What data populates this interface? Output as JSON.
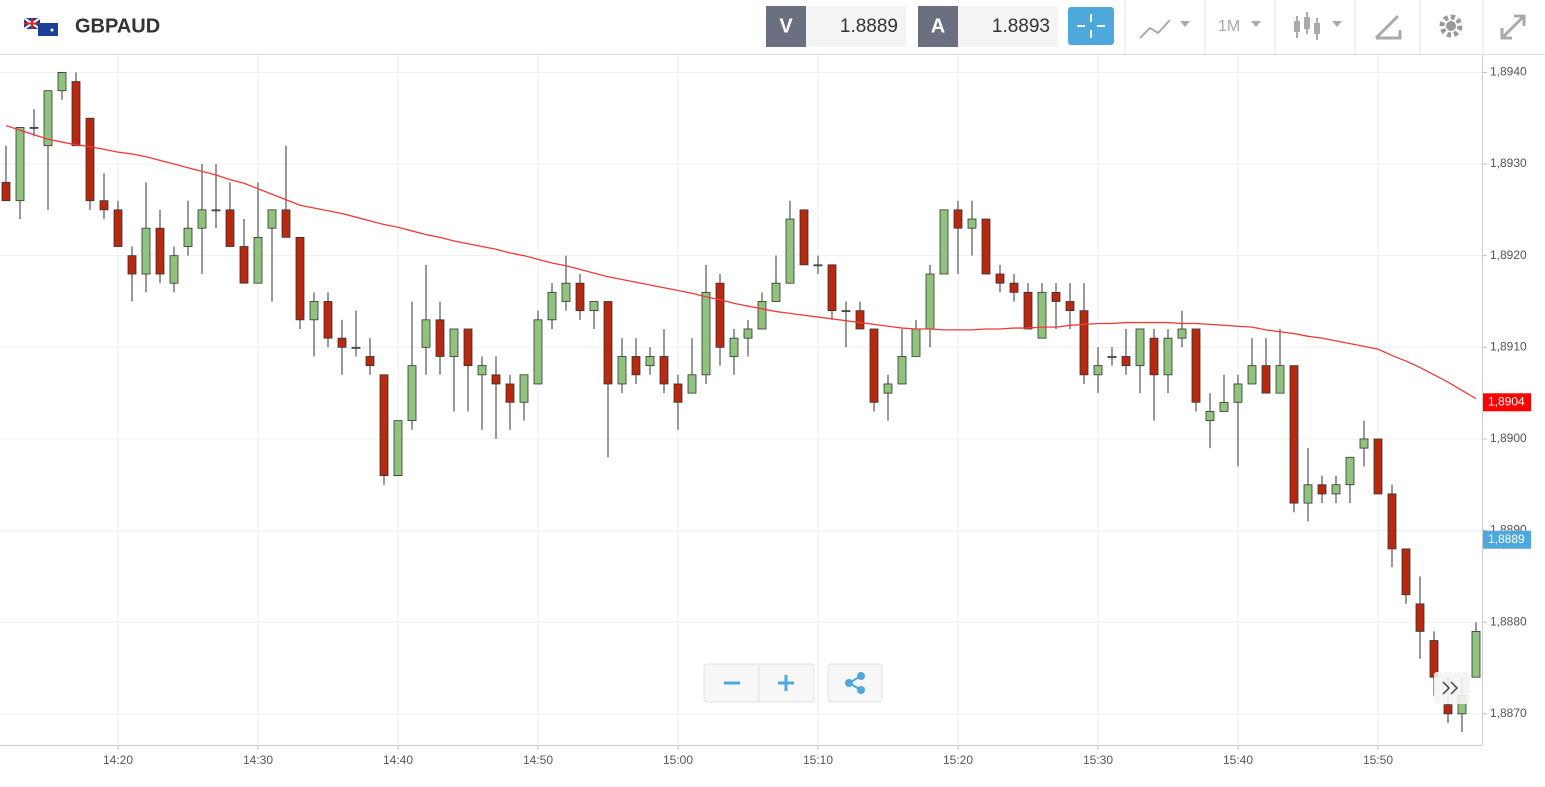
{
  "header": {
    "symbol": "GBPAUD",
    "bid_label": "V",
    "bid": "1.8889",
    "ask_label": "A",
    "ask": "1.8893",
    "timeframe": "1M"
  },
  "chart_data": {
    "type": "candlestick",
    "x": [
      "14:12",
      "14:13",
      "14:14",
      "14:15",
      "14:16",
      "14:17",
      "14:18",
      "14:19",
      "14:20",
      "14:21",
      "14:22",
      "14:23",
      "14:24",
      "14:25",
      "14:26",
      "14:27",
      "14:28",
      "14:29",
      "14:30",
      "14:31",
      "14:32",
      "14:33",
      "14:34",
      "14:35",
      "14:36",
      "14:37",
      "14:38",
      "14:39",
      "14:40",
      "14:41",
      "14:42",
      "14:43",
      "14:44",
      "14:45",
      "14:46",
      "14:47",
      "14:48",
      "14:49",
      "14:50",
      "14:51",
      "14:52",
      "14:53",
      "14:54",
      "14:55",
      "14:56",
      "14:57",
      "14:58",
      "14:59",
      "15:00",
      "15:01",
      "15:02",
      "15:03",
      "15:04",
      "15:05",
      "15:06",
      "15:07",
      "15:08",
      "15:09",
      "15:10",
      "15:11",
      "15:12",
      "15:13",
      "15:14",
      "15:15",
      "15:16",
      "15:17",
      "15:18",
      "15:19",
      "15:20",
      "15:21",
      "15:22",
      "15:23",
      "15:24",
      "15:25",
      "15:26",
      "15:27",
      "15:28",
      "15:29",
      "15:30",
      "15:31",
      "15:32",
      "15:33",
      "15:34",
      "15:35",
      "15:36",
      "15:37",
      "15:38",
      "15:39",
      "15:40",
      "15:41",
      "15:42",
      "15:43",
      "15:44",
      "15:45",
      "15:46",
      "15:47",
      "15:48",
      "15:49",
      "15:50",
      "15:51",
      "15:52",
      "15:53",
      "15:54",
      "15:55",
      "15:56",
      "15:57"
    ],
    "open": [
      1.8928,
      1.8926,
      1.8934,
      1.8932,
      1.8938,
      1.8939,
      1.8935,
      1.8926,
      1.8925,
      1.892,
      1.8918,
      1.8923,
      1.8917,
      1.8921,
      1.8923,
      1.8925,
      1.8925,
      1.8921,
      1.8917,
      1.8923,
      1.8925,
      1.8922,
      1.8913,
      1.8915,
      1.8911,
      1.891,
      1.8909,
      1.8907,
      1.8896,
      1.8902,
      1.891,
      1.8913,
      1.8909,
      1.8912,
      1.8907,
      1.8907,
      1.8906,
      1.8904,
      1.8906,
      1.8913,
      1.8915,
      1.8917,
      1.8914,
      1.8915,
      1.8906,
      1.8909,
      1.8908,
      1.8909,
      1.8906,
      1.8905,
      1.8907,
      1.8917,
      1.8909,
      1.8911,
      1.8912,
      1.8915,
      1.8917,
      1.8925,
      1.8919,
      1.8919,
      1.8914,
      1.8914,
      1.8912,
      1.8905,
      1.8906,
      1.8909,
      1.8912,
      1.8918,
      1.8925,
      1.8923,
      1.8924,
      1.8918,
      1.8917,
      1.8916,
      1.8911,
      1.8916,
      1.8915,
      1.8914,
      1.8907,
      1.8909,
      1.8909,
      1.8908,
      1.8911,
      1.8907,
      1.8911,
      1.8912,
      1.8902,
      1.8903,
      1.8904,
      1.8906,
      1.8908,
      1.8905,
      1.8908,
      1.8893,
      1.8895,
      1.8894,
      1.8895,
      1.8899,
      1.89,
      1.8894,
      1.8888,
      1.8882,
      1.8878,
      1.8871,
      1.887,
      1.8874
    ],
    "high": [
      1.8932,
      1.8934,
      1.8936,
      1.8938,
      1.894,
      1.894,
      1.8935,
      1.8929,
      1.8926,
      1.8921,
      1.8928,
      1.8925,
      1.8921,
      1.8926,
      1.893,
      1.893,
      1.8928,
      1.8924,
      1.8928,
      1.8925,
      1.8932,
      1.8922,
      1.8916,
      1.8916,
      1.8913,
      1.8914,
      1.8911,
      1.8907,
      1.8902,
      1.8915,
      1.8919,
      1.8915,
      1.8912,
      1.8912,
      1.8909,
      1.8909,
      1.8907,
      1.8907,
      1.8914,
      1.8917,
      1.892,
      1.8918,
      1.8915,
      1.8915,
      1.8911,
      1.8911,
      1.891,
      1.8912,
      1.8907,
      1.8911,
      1.8919,
      1.8918,
      1.8912,
      1.8913,
      1.8916,
      1.892,
      1.8926,
      1.8925,
      1.892,
      1.8919,
      1.8915,
      1.8915,
      1.8912,
      1.8907,
      1.8912,
      1.8913,
      1.8919,
      1.8925,
      1.8926,
      1.8926,
      1.8924,
      1.8919,
      1.8918,
      1.8917,
      1.8917,
      1.8917,
      1.8917,
      1.8917,
      1.891,
      1.891,
      1.8912,
      1.8912,
      1.8912,
      1.8912,
      1.8914,
      1.8912,
      1.8905,
      1.8907,
      1.8907,
      1.8911,
      1.8911,
      1.8912,
      1.8908,
      1.8899,
      1.8896,
      1.8896,
      1.8898,
      1.8902,
      1.89,
      1.8895,
      1.8888,
      1.8885,
      1.8879,
      1.8874,
      1.8874,
      1.888
    ],
    "low": [
      1.8926,
      1.8924,
      1.8933,
      1.8925,
      1.8937,
      1.8932,
      1.8925,
      1.8924,
      1.8921,
      1.8915,
      1.8916,
      1.8917,
      1.8916,
      1.892,
      1.8918,
      1.8923,
      1.8921,
      1.8917,
      1.8917,
      1.8915,
      1.8922,
      1.8912,
      1.8909,
      1.891,
      1.8907,
      1.8909,
      1.8907,
      1.8895,
      1.8896,
      1.8901,
      1.8907,
      1.8907,
      1.8903,
      1.8903,
      1.8901,
      1.89,
      1.8901,
      1.8902,
      1.8906,
      1.8912,
      1.8914,
      1.8913,
      1.8912,
      1.8898,
      1.8905,
      1.8906,
      1.8907,
      1.8905,
      1.8901,
      1.8905,
      1.8906,
      1.8908,
      1.8907,
      1.8909,
      1.8912,
      1.8915,
      1.8917,
      1.8919,
      1.8918,
      1.8913,
      1.891,
      1.8912,
      1.8903,
      1.8902,
      1.8906,
      1.8909,
      1.891,
      1.8918,
      1.8918,
      1.892,
      1.8918,
      1.8916,
      1.8915,
      1.8912,
      1.8911,
      1.8912,
      1.8912,
      1.8906,
      1.8905,
      1.8908,
      1.8907,
      1.8905,
      1.8902,
      1.8905,
      1.891,
      1.8903,
      1.8899,
      1.8903,
      1.8897,
      1.8906,
      1.8905,
      1.8905,
      1.8892,
      1.8891,
      1.8893,
      1.8893,
      1.8893,
      1.8897,
      1.8894,
      1.8886,
      1.8882,
      1.8876,
      1.8872,
      1.8869,
      1.8868,
      1.8874
    ],
    "close": [
      1.8926,
      1.8934,
      1.8934,
      1.8938,
      1.894,
      1.8932,
      1.8926,
      1.8925,
      1.8921,
      1.8918,
      1.8923,
      1.8918,
      1.892,
      1.8923,
      1.8925,
      1.8925,
      1.8921,
      1.8917,
      1.8922,
      1.8925,
      1.8922,
      1.8913,
      1.8915,
      1.8911,
      1.891,
      1.891,
      1.8908,
      1.8896,
      1.8902,
      1.8908,
      1.8913,
      1.8909,
      1.8912,
      1.8908,
      1.8908,
      1.8906,
      1.8904,
      1.8907,
      1.8913,
      1.8916,
      1.8917,
      1.8914,
      1.8915,
      1.8906,
      1.8909,
      1.8907,
      1.8909,
      1.8906,
      1.8904,
      1.8907,
      1.8916,
      1.891,
      1.8911,
      1.8912,
      1.8915,
      1.8917,
      1.8924,
      1.8919,
      1.8919,
      1.8914,
      1.8914,
      1.8912,
      1.8904,
      1.8906,
      1.8909,
      1.8912,
      1.8918,
      1.8925,
      1.8923,
      1.8924,
      1.8918,
      1.8917,
      1.8916,
      1.8912,
      1.8916,
      1.8915,
      1.8914,
      1.8907,
      1.8908,
      1.8909,
      1.8908,
      1.8912,
      1.8907,
      1.8911,
      1.8912,
      1.8904,
      1.8903,
      1.8904,
      1.8906,
      1.8908,
      1.8905,
      1.8908,
      1.8893,
      1.8895,
      1.8894,
      1.8895,
      1.8898,
      1.89,
      1.8894,
      1.8888,
      1.8883,
      1.8879,
      1.8874,
      1.887,
      1.8872,
      1.8879
    ],
    "up_color": "#90c47e",
    "down_color": "#b8290f",
    "ma": {
      "color": "#f03a3a",
      "values": [
        1.89342,
        1.89337,
        1.89332,
        1.89327,
        1.89324,
        1.89321,
        1.89319,
        1.89316,
        1.89313,
        1.89311,
        1.89308,
        1.89304,
        1.893,
        1.89296,
        1.89292,
        1.89288,
        1.89283,
        1.89279,
        1.89273,
        1.89267,
        1.89261,
        1.89255,
        1.89252,
        1.89249,
        1.89246,
        1.89242,
        1.89238,
        1.89234,
        1.89231,
        1.89227,
        1.89223,
        1.8922,
        1.89216,
        1.89213,
        1.8921,
        1.89207,
        1.89203,
        1.892,
        1.89196,
        1.89192,
        1.89189,
        1.89185,
        1.89181,
        1.89177,
        1.89174,
        1.89171,
        1.89168,
        1.89165,
        1.89162,
        1.89159,
        1.89155,
        1.89152,
        1.89148,
        1.89145,
        1.89142,
        1.89139,
        1.89137,
        1.89135,
        1.89133,
        1.89131,
        1.89129,
        1.89127,
        1.89125,
        1.89123,
        1.89121,
        1.8912,
        1.8912,
        1.89119,
        1.89119,
        1.89119,
        1.8912,
        1.8912,
        1.89121,
        1.89121,
        1.89122,
        1.89122,
        1.89124,
        1.89125,
        1.89126,
        1.89126,
        1.89127,
        1.89127,
        1.89127,
        1.89127,
        1.89126,
        1.89126,
        1.89125,
        1.89124,
        1.89123,
        1.89122,
        1.89119,
        1.89117,
        1.89115,
        1.89112,
        1.8911,
        1.89107,
        1.89104,
        1.89101,
        1.89098,
        1.89091,
        1.89085,
        1.89078,
        1.8907,
        1.89062,
        1.89053,
        1.89044
      ]
    },
    "price_markers": [
      {
        "value": 1.8904,
        "label": "1,8904",
        "color": "#ff0000"
      },
      {
        "value": 1.8889,
        "label": "1,8889",
        "color": "#4fa8dc"
      }
    ],
    "ylim": [
      1.88666,
      1.89419
    ],
    "yticks": [
      {
        "value": 1.887,
        "label": "1,8870"
      },
      {
        "value": 1.888,
        "label": "1,8880"
      },
      {
        "value": 1.889,
        "label": "1,8890"
      },
      {
        "value": 1.89,
        "label": "1,8900"
      },
      {
        "value": 1.891,
        "label": "1,8910"
      },
      {
        "value": 1.892,
        "label": "1,8920"
      },
      {
        "value": 1.893,
        "label": "1,8930"
      },
      {
        "value": 1.894,
        "label": "1,8940"
      }
    ],
    "xticks": [
      "14:20",
      "14:30",
      "14:40",
      "14:50",
      "15:00",
      "15:10",
      "15:20",
      "15:30",
      "15:40",
      "15:50"
    ],
    "grid": true
  }
}
